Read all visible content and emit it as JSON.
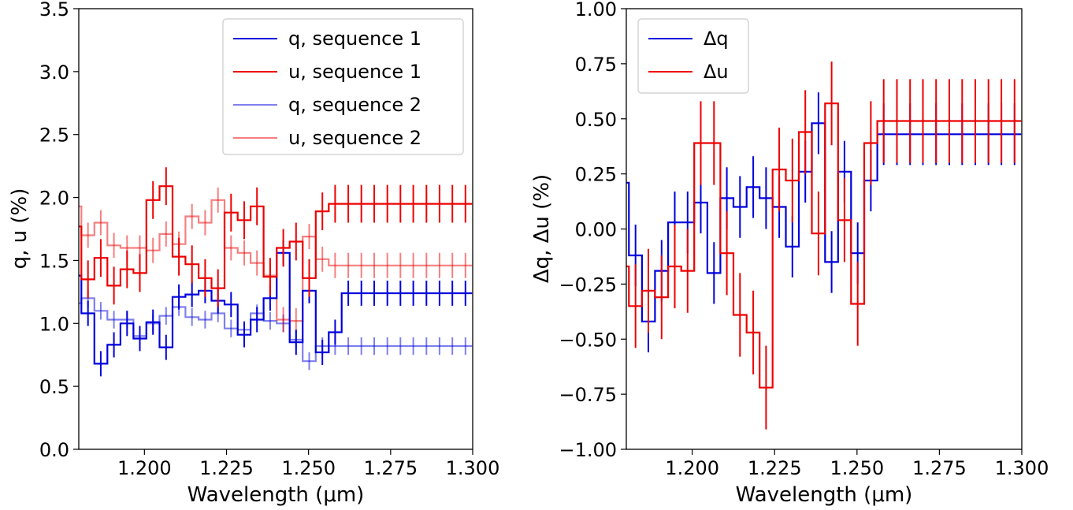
{
  "chart_data": [
    {
      "type": "line",
      "drawstyle": "steps-mid",
      "xlabel": "Wavelength (μm)",
      "ylabel": "q, u (%)",
      "xlim": [
        1.18,
        1.3
      ],
      "ylim": [
        0.0,
        3.5
      ],
      "xticks": [
        1.2,
        1.225,
        1.25,
        1.275,
        1.3
      ],
      "xtick_labels": [
        "1.200",
        "1.225",
        "1.250",
        "1.275",
        "1.300"
      ],
      "yticks": [
        0.0,
        0.5,
        1.0,
        1.5,
        2.0,
        2.5,
        3.0,
        3.5
      ],
      "ytick_labels": [
        "0.0",
        "0.5",
        "1.0",
        "1.5",
        "2.0",
        "2.5",
        "3.0",
        "3.5"
      ],
      "legend_position": "top-right",
      "x": [
        1.1788,
        1.1828,
        1.1867,
        1.1907,
        1.1947,
        1.1986,
        1.2026,
        1.2066,
        1.2105,
        1.2145,
        1.2185,
        1.2224,
        1.2264,
        1.2304,
        1.2343,
        1.2383,
        1.2423,
        1.2462,
        1.2502,
        1.2542,
        1.2581,
        1.2621,
        1.2661,
        1.27,
        1.274,
        1.278,
        1.2819,
        1.2859,
        1.2899,
        1.2938,
        1.2978
      ],
      "series": [
        {
          "name": "q, sequence 1",
          "color": "#0000dd",
          "opacity": 1.0,
          "values": [
            1.38,
            1.08,
            0.68,
            0.83,
            1.0,
            0.88,
            1.01,
            0.81,
            1.21,
            1.23,
            1.26,
            1.18,
            1.15,
            0.91,
            1.03,
            1.2,
            1.56,
            0.85,
            1.26,
            0.77,
            0.93,
            1.24,
            1.24,
            1.24,
            1.24,
            1.24,
            1.24,
            1.24,
            1.24,
            1.24,
            1.24
          ],
          "errors": [
            0.1,
            0.1,
            0.1,
            0.1,
            0.1,
            0.1,
            0.1,
            0.1,
            0.1,
            0.1,
            0.1,
            0.1,
            0.1,
            0.1,
            0.1,
            0.1,
            0.1,
            0.1,
            0.1,
            0.1,
            0.1,
            0.1,
            0.1,
            0.1,
            0.1,
            0.1,
            0.1,
            0.1,
            0.1,
            0.1,
            0.1
          ]
        },
        {
          "name": "u, sequence 1",
          "color": "#ee0000",
          "opacity": 1.0,
          "values": [
            1.77,
            1.35,
            1.52,
            1.3,
            1.43,
            1.4,
            1.98,
            2.09,
            1.53,
            1.47,
            1.36,
            1.28,
            1.88,
            1.82,
            1.93,
            1.37,
            1.6,
            1.65,
            1.36,
            1.89,
            1.95,
            1.95,
            1.95,
            1.95,
            1.95,
            1.95,
            1.95,
            1.95,
            1.95,
            1.95,
            1.95
          ],
          "errors": [
            0.15,
            0.15,
            0.15,
            0.15,
            0.15,
            0.15,
            0.15,
            0.15,
            0.15,
            0.15,
            0.15,
            0.15,
            0.15,
            0.15,
            0.15,
            0.15,
            0.15,
            0.15,
            0.15,
            0.15,
            0.15,
            0.15,
            0.15,
            0.15,
            0.15,
            0.15,
            0.15,
            0.15,
            0.15,
            0.15,
            0.15
          ]
        },
        {
          "name": "q, sequence 2",
          "color": "#0000dd",
          "opacity": 0.5,
          "values": [
            1.16,
            1.2,
            1.1,
            1.03,
            1.03,
            0.9,
            1.0,
            1.06,
            1.13,
            1.05,
            1.03,
            1.08,
            0.96,
            0.95,
            1.08,
            1.02,
            1.0,
            0.87,
            0.7,
            0.82,
            0.82,
            0.82,
            0.82,
            0.82,
            0.82,
            0.82,
            0.82,
            0.82,
            0.82,
            0.82,
            0.82
          ],
          "errors": [
            0.07,
            0.07,
            0.07,
            0.07,
            0.07,
            0.07,
            0.07,
            0.07,
            0.07,
            0.07,
            0.07,
            0.07,
            0.07,
            0.07,
            0.07,
            0.07,
            0.07,
            0.07,
            0.07,
            0.07,
            0.07,
            0.07,
            0.07,
            0.07,
            0.07,
            0.07,
            0.07,
            0.07,
            0.07,
            0.07,
            0.07
          ]
        },
        {
          "name": "u, sequence 2",
          "color": "#ee0000",
          "opacity": 0.5,
          "values": [
            1.93,
            1.7,
            1.8,
            1.62,
            1.6,
            1.6,
            1.58,
            1.71,
            1.63,
            1.85,
            1.8,
            1.98,
            1.6,
            1.56,
            1.48,
            1.38,
            1.03,
            1.02,
            1.69,
            1.51,
            1.46,
            1.46,
            1.46,
            1.46,
            1.46,
            1.46,
            1.46,
            1.46,
            1.46,
            1.46,
            1.46
          ],
          "errors": [
            0.1,
            0.1,
            0.1,
            0.1,
            0.1,
            0.1,
            0.1,
            0.1,
            0.1,
            0.1,
            0.1,
            0.1,
            0.1,
            0.1,
            0.1,
            0.1,
            0.1,
            0.1,
            0.1,
            0.1,
            0.1,
            0.1,
            0.1,
            0.1,
            0.1,
            0.1,
            0.1,
            0.1,
            0.1,
            0.1,
            0.1
          ]
        }
      ]
    },
    {
      "type": "line",
      "drawstyle": "steps-mid",
      "xlabel": "Wavelength (μm)",
      "ylabel": "Δq, Δu (%)",
      "xlim": [
        1.18,
        1.3
      ],
      "ylim": [
        -1.0,
        1.0
      ],
      "xticks": [
        1.2,
        1.225,
        1.25,
        1.275,
        1.3
      ],
      "xtick_labels": [
        "1.200",
        "1.225",
        "1.250",
        "1.275",
        "1.300"
      ],
      "yticks": [
        -1.0,
        -0.75,
        -0.5,
        -0.25,
        0.0,
        0.25,
        0.5,
        0.75,
        1.0
      ],
      "ytick_labels": [
        "−1.00",
        "−0.75",
        "−0.50",
        "−0.25",
        "0.00",
        "0.25",
        "0.50",
        "0.75",
        "1.00"
      ],
      "legend_position": "top-left",
      "x": [
        1.1788,
        1.1828,
        1.1867,
        1.1907,
        1.1947,
        1.1986,
        1.2026,
        1.2066,
        1.2105,
        1.2145,
        1.2185,
        1.2224,
        1.2264,
        1.2304,
        1.2343,
        1.2383,
        1.2423,
        1.2462,
        1.2502,
        1.2542,
        1.2581,
        1.2621,
        1.2661,
        1.27,
        1.274,
        1.278,
        1.2819,
        1.2859,
        1.2899,
        1.2938,
        1.2978
      ],
      "series": [
        {
          "name": "Δq",
          "color": "#0000dd",
          "opacity": 1.0,
          "values": [
            0.21,
            -0.12,
            -0.42,
            -0.19,
            0.03,
            0.03,
            0.12,
            -0.2,
            0.14,
            0.1,
            0.19,
            0.14,
            0.1,
            -0.08,
            0.26,
            0.48,
            -0.15,
            0.26,
            -0.11,
            0.22,
            0.43,
            0.43,
            0.43,
            0.43,
            0.43,
            0.43,
            0.43,
            0.43,
            0.43,
            0.43,
            0.43
          ],
          "errors": [
            0.14,
            0.14,
            0.14,
            0.14,
            0.14,
            0.14,
            0.14,
            0.14,
            0.14,
            0.14,
            0.14,
            0.14,
            0.14,
            0.14,
            0.14,
            0.14,
            0.14,
            0.14,
            0.14,
            0.14,
            0.14,
            0.14,
            0.14,
            0.14,
            0.14,
            0.14,
            0.14,
            0.14,
            0.14,
            0.14,
            0.14
          ]
        },
        {
          "name": "Δu",
          "color": "#ee0000",
          "opacity": 1.0,
          "values": [
            -0.17,
            -0.35,
            -0.28,
            -0.31,
            -0.17,
            -0.19,
            0.39,
            0.39,
            -0.11,
            -0.39,
            -0.47,
            -0.72,
            0.27,
            0.22,
            0.44,
            -0.02,
            0.57,
            0.04,
            -0.34,
            0.39,
            0.49,
            0.49,
            0.49,
            0.49,
            0.49,
            0.49,
            0.49,
            0.49,
            0.49,
            0.49,
            0.49
          ],
          "errors": [
            0.19,
            0.19,
            0.19,
            0.19,
            0.19,
            0.19,
            0.19,
            0.19,
            0.19,
            0.19,
            0.19,
            0.19,
            0.19,
            0.19,
            0.19,
            0.19,
            0.19,
            0.19,
            0.19,
            0.19,
            0.19,
            0.19,
            0.19,
            0.19,
            0.19,
            0.19,
            0.19,
            0.19,
            0.19,
            0.19,
            0.19
          ]
        }
      ]
    }
  ]
}
